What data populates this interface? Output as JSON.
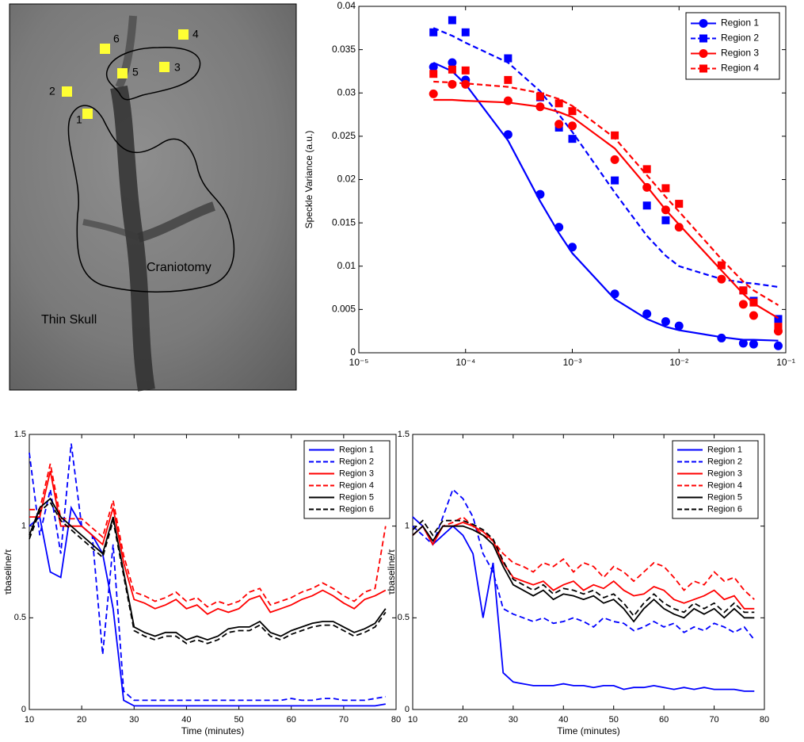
{
  "image_panel": {
    "labels": [
      "1",
      "2",
      "3",
      "4",
      "5",
      "6",
      "Craniotomy",
      "Thin Skull"
    ]
  },
  "chart_data": [
    {
      "type": "scatter",
      "xscale": "log",
      "ylabel": "Speckle Variance (a.u.)",
      "xlim": [
        1e-05,
        0.1
      ],
      "xticks": [
        {
          "value": 1e-05,
          "label": "10⁻⁵"
        },
        {
          "value": 0.0001,
          "label": "10⁻⁴"
        },
        {
          "value": 0.001,
          "label": "10⁻³"
        },
        {
          "value": 0.01,
          "label": "10⁻²"
        },
        {
          "value": 0.1,
          "label": "10⁻¹"
        }
      ],
      "ylim": [
        0,
        0.04
      ],
      "yticks": [
        0,
        0.005,
        0.01,
        0.015,
        0.02,
        0.025,
        0.03,
        0.035,
        0.04
      ],
      "legend": "upper right",
      "x": [
        5e-05,
        7.5e-05,
        0.0001,
        0.00025,
        0.0005,
        0.00075,
        0.001,
        0.0025,
        0.005,
        0.0075,
        0.01,
        0.025,
        0.04,
        0.05,
        0.085
      ],
      "series": [
        {
          "name": "Region 1",
          "color": "#0000ff",
          "marker": "circle",
          "dashed": false,
          "values": [
            0.033,
            0.0335,
            0.0315,
            0.0252,
            0.0183,
            0.0145,
            0.0122,
            0.0068,
            0.0045,
            0.0036,
            0.0031,
            0.0017,
            0.0011,
            0.001,
            0.0008
          ],
          "fit": [
            0.0335,
            0.0325,
            0.031,
            0.0245,
            0.0175,
            0.0138,
            0.0115,
            0.0062,
            0.0039,
            0.003,
            0.0026,
            0.0018,
            0.0015,
            0.0015,
            0.0014
          ]
        },
        {
          "name": "Region 2",
          "color": "#0000ff",
          "marker": "square",
          "dashed": true,
          "values": [
            0.037,
            0.0384,
            0.037,
            0.034,
            0.0295,
            0.026,
            0.0247,
            0.0199,
            0.017,
            0.0153,
            null,
            null,
            0.0072,
            0.006,
            0.0039
          ],
          "fit": [
            0.0375,
            0.0366,
            0.0358,
            0.0335,
            0.0302,
            0.0275,
            0.0255,
            0.0185,
            0.0135,
            0.0112,
            0.01,
            0.0085,
            0.0081,
            0.008,
            0.0076
          ]
        },
        {
          "name": "Region 3",
          "color": "#ff0000",
          "marker": "circle",
          "dashed": false,
          "values": [
            0.0299,
            0.031,
            0.031,
            0.0291,
            0.0284,
            0.0264,
            0.0262,
            0.0223,
            0.0191,
            0.0165,
            0.0145,
            0.0085,
            0.0056,
            0.0043,
            0.0025
          ],
          "fit": [
            0.0292,
            0.0292,
            0.0291,
            0.0289,
            0.0284,
            0.0278,
            0.0272,
            0.0236,
            0.0192,
            0.0165,
            0.0148,
            0.0095,
            0.0068,
            0.0057,
            0.004
          ]
        },
        {
          "name": "Region 4",
          "color": "#ff0000",
          "marker": "square",
          "dashed": true,
          "values": [
            0.0322,
            0.0327,
            0.0326,
            0.0315,
            0.0296,
            0.0288,
            0.0279,
            0.0251,
            0.0212,
            0.019,
            0.0172,
            0.0101,
            0.0072,
            0.0058,
            0.003
          ],
          "fit": [
            0.0313,
            0.0312,
            0.0311,
            0.0307,
            0.03,
            0.0293,
            0.0285,
            0.0248,
            0.0205,
            0.018,
            0.0163,
            0.0108,
            0.0082,
            0.0072,
            0.0055
          ]
        }
      ]
    },
    {
      "type": "line",
      "xlabel": "Time (minutes)",
      "ylabel": "τbaseline/τ",
      "xlim": [
        10,
        80
      ],
      "xticks": [
        10,
        20,
        30,
        40,
        50,
        60,
        70,
        80
      ],
      "ylim": [
        0,
        1.5
      ],
      "yticks": [
        0,
        0.5,
        1,
        1.5
      ],
      "legend": "upper right",
      "x": [
        10,
        12,
        14,
        16,
        18,
        20,
        22,
        24,
        26,
        28,
        30,
        32,
        34,
        36,
        38,
        40,
        42,
        44,
        46,
        48,
        50,
        52,
        54,
        56,
        58,
        60,
        62,
        64,
        66,
        68,
        70,
        72,
        74,
        76,
        78
      ],
      "series": [
        {
          "name": "Region 1",
          "color": "#0000ff",
          "dashed": false,
          "values": [
            1.0,
            1.05,
            0.75,
            0.72,
            1.1,
            1.0,
            0.95,
            0.85,
            0.55,
            0.05,
            0.02,
            0.02,
            0.02,
            0.02,
            0.02,
            0.02,
            0.02,
            0.02,
            0.02,
            0.02,
            0.02,
            0.02,
            0.02,
            0.02,
            0.02,
            0.02,
            0.02,
            0.02,
            0.02,
            0.02,
            0.02,
            0.02,
            0.02,
            0.02,
            0.03
          ]
        },
        {
          "name": "Region 2",
          "color": "#0000ff",
          "dashed": true,
          "values": [
            1.4,
            0.95,
            1.2,
            0.85,
            1.45,
            1.0,
            0.95,
            0.3,
            0.9,
            0.1,
            0.05,
            0.05,
            0.05,
            0.05,
            0.05,
            0.05,
            0.05,
            0.05,
            0.05,
            0.05,
            0.05,
            0.05,
            0.05,
            0.05,
            0.05,
            0.06,
            0.05,
            0.05,
            0.06,
            0.06,
            0.05,
            0.05,
            0.05,
            0.06,
            0.07
          ]
        },
        {
          "name": "Region 3",
          "color": "#ff0000",
          "dashed": false,
          "values": [
            1.05,
            1.05,
            1.3,
            1.0,
            1.0,
            1.0,
            0.95,
            0.9,
            1.1,
            0.8,
            0.6,
            0.58,
            0.55,
            0.57,
            0.6,
            0.55,
            0.57,
            0.52,
            0.55,
            0.53,
            0.55,
            0.6,
            0.62,
            0.53,
            0.55,
            0.57,
            0.6,
            0.62,
            0.65,
            0.62,
            0.58,
            0.55,
            0.6,
            0.62,
            0.65
          ]
        },
        {
          "name": "Region 4",
          "color": "#ff0000",
          "dashed": true,
          "values": [
            1.09,
            1.09,
            1.34,
            1.04,
            1.04,
            1.04,
            0.99,
            0.94,
            1.14,
            0.84,
            0.64,
            0.62,
            0.59,
            0.61,
            0.64,
            0.59,
            0.61,
            0.56,
            0.59,
            0.57,
            0.59,
            0.64,
            0.66,
            0.57,
            0.59,
            0.61,
            0.64,
            0.66,
            0.69,
            0.66,
            0.62,
            0.59,
            0.64,
            0.66,
            1.0
          ]
        },
        {
          "name": "Region 5",
          "color": "#000000",
          "dashed": false,
          "values": [
            0.95,
            1.1,
            1.15,
            1.05,
            1.0,
            0.95,
            0.9,
            0.85,
            1.05,
            0.75,
            0.45,
            0.42,
            0.4,
            0.42,
            0.42,
            0.38,
            0.4,
            0.38,
            0.4,
            0.44,
            0.45,
            0.45,
            0.48,
            0.42,
            0.4,
            0.43,
            0.45,
            0.47,
            0.48,
            0.48,
            0.45,
            0.42,
            0.44,
            0.47,
            0.55
          ]
        },
        {
          "name": "Region 6",
          "color": "#000000",
          "dashed": true,
          "values": [
            0.93,
            1.08,
            1.13,
            1.03,
            0.98,
            0.93,
            0.88,
            0.83,
            1.03,
            0.73,
            0.43,
            0.4,
            0.38,
            0.4,
            0.4,
            0.36,
            0.38,
            0.36,
            0.38,
            0.42,
            0.43,
            0.43,
            0.46,
            0.4,
            0.38,
            0.41,
            0.43,
            0.45,
            0.46,
            0.46,
            0.43,
            0.4,
            0.42,
            0.45,
            0.53
          ]
        }
      ]
    },
    {
      "type": "line",
      "xlabel": "Time (minutes)",
      "ylabel": "τbaseline/τ",
      "xlim": [
        10,
        80
      ],
      "xticks": [
        10,
        20,
        30,
        40,
        50,
        60,
        70,
        80
      ],
      "ylim": [
        0,
        1.5
      ],
      "yticks": [
        0,
        0.5,
        1,
        1.5
      ],
      "legend": "upper right",
      "x": [
        10,
        12,
        14,
        16,
        18,
        20,
        22,
        24,
        26,
        28,
        30,
        32,
        34,
        36,
        38,
        40,
        42,
        44,
        46,
        48,
        50,
        52,
        54,
        56,
        58,
        60,
        62,
        64,
        66,
        68,
        70,
        72,
        74,
        76,
        78
      ],
      "series": [
        {
          "name": "Region 1",
          "color": "#0000ff",
          "dashed": false,
          "values": [
            1.05,
            1.0,
            0.9,
            0.95,
            1.0,
            0.95,
            0.85,
            0.5,
            0.8,
            0.2,
            0.15,
            0.14,
            0.13,
            0.13,
            0.13,
            0.14,
            0.13,
            0.13,
            0.12,
            0.13,
            0.13,
            0.11,
            0.12,
            0.12,
            0.13,
            0.12,
            0.11,
            0.12,
            0.11,
            0.12,
            0.11,
            0.11,
            0.11,
            0.1,
            0.1
          ]
        },
        {
          "name": "Region 2",
          "color": "#0000ff",
          "dashed": true,
          "values": [
            1.0,
            0.95,
            0.9,
            1.05,
            1.2,
            1.15,
            1.05,
            0.85,
            0.75,
            0.55,
            0.52,
            0.5,
            0.48,
            0.5,
            0.47,
            0.48,
            0.5,
            0.48,
            0.45,
            0.5,
            0.48,
            0.47,
            0.43,
            0.45,
            0.48,
            0.45,
            0.47,
            0.42,
            0.45,
            0.43,
            0.47,
            0.45,
            0.42,
            0.45,
            0.38
          ]
        },
        {
          "name": "Region 3",
          "color": "#ff0000",
          "dashed": false,
          "values": [
            0.95,
            1.0,
            0.9,
            1.0,
            1.0,
            1.02,
            1.0,
            0.97,
            0.92,
            0.8,
            0.72,
            0.7,
            0.68,
            0.7,
            0.65,
            0.68,
            0.7,
            0.65,
            0.68,
            0.66,
            0.7,
            0.65,
            0.62,
            0.63,
            0.67,
            0.65,
            0.6,
            0.58,
            0.6,
            0.62,
            0.65,
            0.6,
            0.62,
            0.55,
            0.55
          ]
        },
        {
          "name": "Region 4",
          "color": "#ff0000",
          "dashed": true,
          "values": [
            0.95,
            1.0,
            0.9,
            1.0,
            1.02,
            1.05,
            1.0,
            0.95,
            0.92,
            0.85,
            0.8,
            0.78,
            0.75,
            0.8,
            0.78,
            0.82,
            0.75,
            0.8,
            0.78,
            0.72,
            0.78,
            0.75,
            0.7,
            0.75,
            0.8,
            0.78,
            0.72,
            0.65,
            0.7,
            0.68,
            0.75,
            0.7,
            0.72,
            0.65,
            0.6
          ]
        },
        {
          "name": "Region 5",
          "color": "#000000",
          "dashed": false,
          "values": [
            0.95,
            1.0,
            0.92,
            1.0,
            1.0,
            1.0,
            0.98,
            0.95,
            0.9,
            0.78,
            0.68,
            0.65,
            0.62,
            0.65,
            0.6,
            0.63,
            0.62,
            0.6,
            0.62,
            0.58,
            0.6,
            0.55,
            0.48,
            0.55,
            0.6,
            0.55,
            0.52,
            0.5,
            0.55,
            0.52,
            0.55,
            0.5,
            0.55,
            0.5,
            0.5
          ]
        },
        {
          "name": "Region 6",
          "color": "#000000",
          "dashed": true,
          "values": [
            0.98,
            1.03,
            0.95,
            1.03,
            1.03,
            1.03,
            1.01,
            0.98,
            0.93,
            0.81,
            0.71,
            0.68,
            0.65,
            0.68,
            0.63,
            0.66,
            0.65,
            0.63,
            0.65,
            0.61,
            0.63,
            0.58,
            0.51,
            0.58,
            0.63,
            0.58,
            0.55,
            0.53,
            0.58,
            0.55,
            0.58,
            0.53,
            0.58,
            0.53,
            0.53
          ]
        }
      ]
    }
  ]
}
